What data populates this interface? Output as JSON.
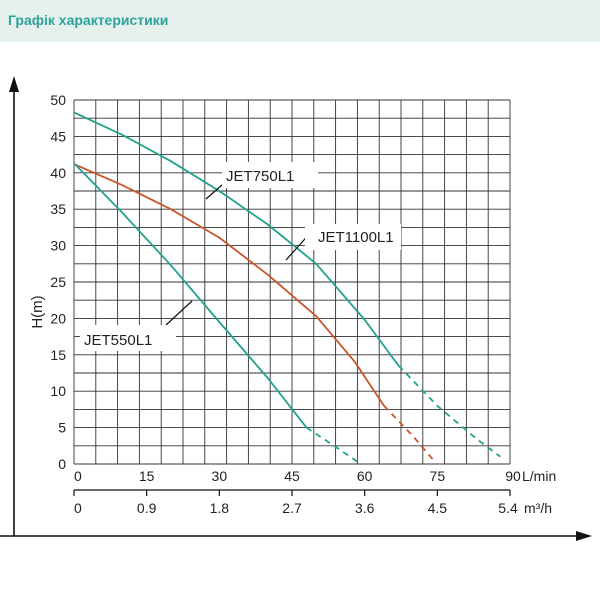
{
  "header": {
    "title": "Графік характеристики"
  },
  "chart_data": {
    "type": "line",
    "ylabel": "H(m)",
    "xlim": [
      0,
      90
    ],
    "ylim": [
      0,
      50
    ],
    "x_ticks": [
      "0",
      "15",
      "30",
      "45",
      "60",
      "75",
      "90"
    ],
    "x_unit": "L/min",
    "x2_ticks": [
      "0",
      "0.9",
      "1.8",
      "2.7",
      "3.6",
      "4.5",
      "5.4"
    ],
    "x2_unit": "m³/h",
    "y_ticks": [
      "0",
      "5",
      "10",
      "15",
      "20",
      "25",
      "30",
      "35",
      "40",
      "45",
      "50"
    ],
    "grid": true,
    "series": [
      {
        "name": "JET750L1",
        "color": "#23a18f",
        "x": [
          0,
          10,
          20,
          30,
          40,
          50,
          60,
          67,
          75,
          83,
          88
        ],
        "y": [
          48.3,
          45.2,
          41.6,
          37.5,
          32.9,
          27.5,
          19.8,
          13.5,
          8.0,
          3.5,
          1.0
        ],
        "dashed_from_x": 67
      },
      {
        "name": "JET1100L1",
        "color": "#c8552a",
        "x": [
          0,
          10,
          20,
          30,
          40,
          50,
          58,
          64,
          70,
          74.5
        ],
        "y": [
          41.2,
          38.3,
          35.0,
          31.1,
          26.0,
          20.3,
          14.0,
          8.0,
          3.8,
          0.3
        ],
        "dashed_from_x": 64
      },
      {
        "name": "JET550L1",
        "color": "#23a18f",
        "x": [
          0,
          10,
          20,
          30,
          40,
          48,
          53,
          59
        ],
        "y": [
          41.3,
          34.5,
          27.3,
          19.5,
          11.8,
          5.0,
          2.8,
          0.1
        ],
        "dashed_from_x": 48
      }
    ]
  }
}
